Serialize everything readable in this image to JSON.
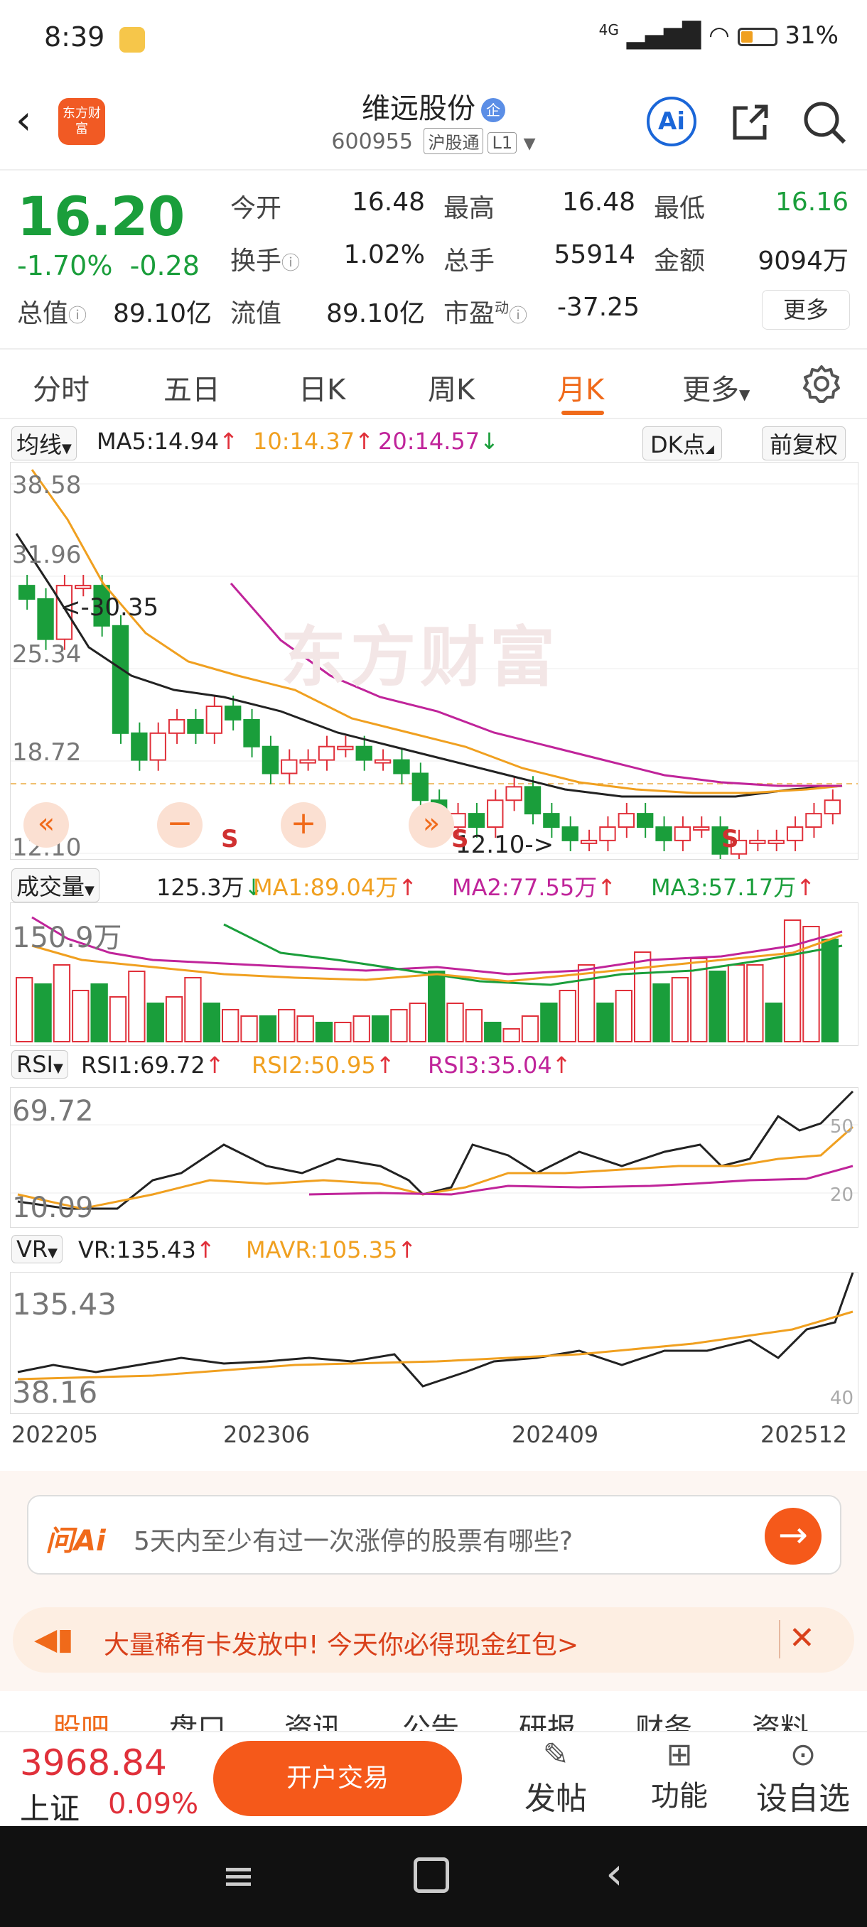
{
  "status": {
    "time": "8:39",
    "signal": "4G",
    "battery": "31%"
  },
  "header": {
    "logo_text": "东方财富",
    "name": "维远股份",
    "code": "600955",
    "market_tag": "沪股通",
    "level_tag": "L1",
    "ai_label": "Ai"
  },
  "quote": {
    "price": "16.20",
    "pct": "-1.70%",
    "chg": "-0.28",
    "open_label": "今开",
    "open": "16.48",
    "high_label": "最高",
    "high": "16.48",
    "low_label": "最低",
    "low": "16.16",
    "turnover_label": "换手",
    "turnover": "1.02%",
    "vol_label": "总手",
    "vol": "55914",
    "amount_label": "金额",
    "amount": "9094万",
    "mcap_label": "总值",
    "mcap": "89.10亿",
    "float_label": "流值",
    "float": "89.10亿",
    "pe_label": "市盈",
    "pe_super": "动",
    "pe": "-37.25",
    "more": "更多"
  },
  "tabs": [
    "分时",
    "五日",
    "日K",
    "周K",
    "月K",
    "更多"
  ],
  "ma_bar": {
    "select": "均线",
    "ma5": "MA5:14.94",
    "ma10": "10:14.37",
    "ma20": "20:14.57",
    "dk": "DK点",
    "fq": "前复权"
  },
  "kline": {
    "y_labels": [
      "38.58",
      "31.96",
      "25.34",
      "18.72",
      "12.10"
    ],
    "max_note": "<-30.35",
    "min_note": "12.10->",
    "watermark": "东方财富"
  },
  "vol_bar": {
    "select": "成交量",
    "value": "125.3万",
    "ma1": "MA1:89.04万",
    "ma2": "MA2:77.55万",
    "ma3": "MA3:57.17万",
    "y_label": "150.9万"
  },
  "rsi_bar": {
    "select": "RSI",
    "rsi1": "RSI1:69.72",
    "rsi2": "RSI2:50.95",
    "rsi3": "RSI3:35.04",
    "y_top": "69.72",
    "y_bottom": "10.09",
    "ref1": "50",
    "ref2": "20"
  },
  "vr_bar": {
    "select": "VR",
    "vr": "VR:135.43",
    "mavr": "MAVR:105.35",
    "y_top": "135.43",
    "y_bottom": "38.16",
    "ref": "40"
  },
  "x_dates": [
    "202205",
    "202306",
    "202409",
    "202512"
  ],
  "ask": {
    "brand": "问Ai",
    "text": "5天内至少有过一次涨停的股票有哪些?"
  },
  "promo": {
    "text": "大量稀有卡发放中! 今天你必得现金红包>"
  },
  "subtabs": [
    "股吧",
    "盘口",
    "资讯",
    "公告",
    "研报",
    "财务",
    "资料"
  ],
  "bottom": {
    "index_value": "3968.84",
    "index_name": "上证",
    "index_pct": "0.09%",
    "trade": "开户交易",
    "post": "发帖",
    "func": "功能",
    "watch": "设自选"
  },
  "colors": {
    "up": "#e0303a",
    "down": "#1a9e3b",
    "accent": "#f06a1a",
    "ma5": "#222222",
    "ma10": "#f0a020",
    "ma20": "#c0249a"
  }
}
